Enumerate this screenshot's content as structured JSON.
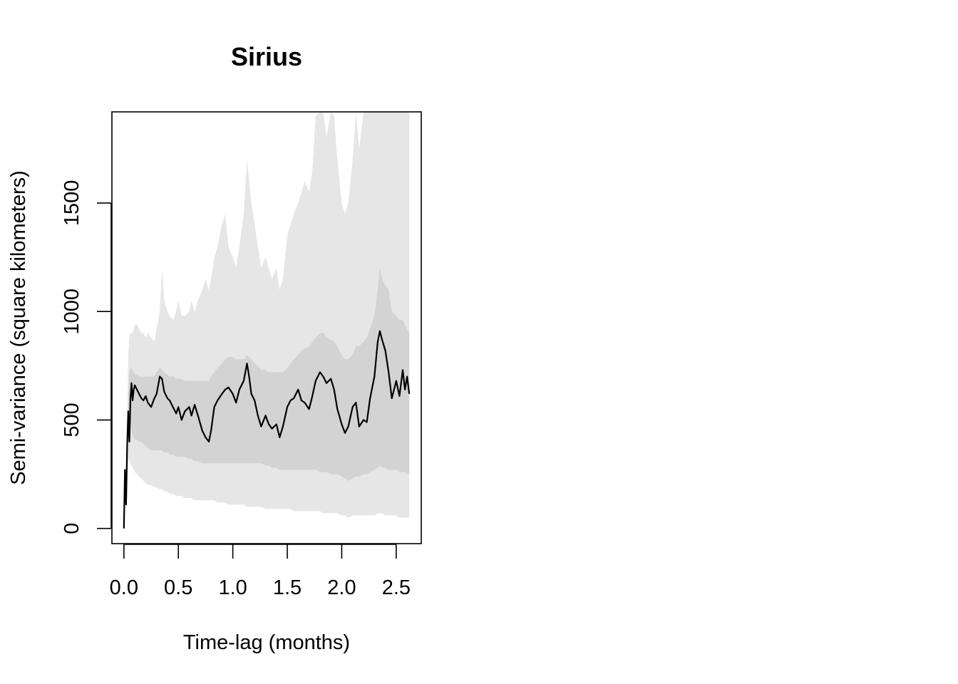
{
  "chart_data": {
    "type": "line",
    "title": "Sirius",
    "xlabel": "Time-lag (months)",
    "ylabel": "Semi-variance (square kilometers)",
    "xlim": [
      -0.11,
      2.73
    ],
    "ylim": [
      -70,
      1920
    ],
    "x_ticks": [
      0.0,
      0.5,
      1.0,
      1.5,
      2.0,
      2.5
    ],
    "x_tick_labels": [
      "0.0",
      "0.5",
      "1.0",
      "1.5",
      "2.0",
      "2.5"
    ],
    "y_ticks": [
      0,
      500,
      1000,
      1500
    ],
    "y_tick_labels": [
      "0",
      "500",
      "1000",
      "1500"
    ],
    "grid": false,
    "colors": {
      "line": "#000000",
      "inner_band": "#d3d3d3",
      "outer_band": "#e6e6e6"
    },
    "series": [
      {
        "x": [
          0.0,
          0.01,
          0.02,
          0.03,
          0.04,
          0.05,
          0.06,
          0.07,
          0.08,
          0.09,
          0.1,
          0.12,
          0.14,
          0.16,
          0.18,
          0.2,
          0.22,
          0.25,
          0.28,
          0.3,
          0.33,
          0.35,
          0.37,
          0.4,
          0.42,
          0.45,
          0.48,
          0.5,
          0.53,
          0.56,
          0.6,
          0.62,
          0.65,
          0.68,
          0.72,
          0.75,
          0.78,
          0.8,
          0.83,
          0.86,
          0.9,
          0.93,
          0.96,
          1.0,
          1.03,
          1.06,
          1.1,
          1.13,
          1.15,
          1.17,
          1.2,
          1.23,
          1.26,
          1.3,
          1.33,
          1.36,
          1.4,
          1.43,
          1.46,
          1.5,
          1.53,
          1.56,
          1.6,
          1.63,
          1.66,
          1.7,
          1.73,
          1.76,
          1.8,
          1.83,
          1.86,
          1.9,
          1.93,
          1.96,
          2.0,
          2.03,
          2.06,
          2.1,
          2.13,
          2.16,
          2.2,
          2.23,
          2.26,
          2.3,
          2.33,
          2.35,
          2.37,
          2.4,
          2.43,
          2.46,
          2.5,
          2.53,
          2.56,
          2.58,
          2.6,
          2.62
        ],
        "values": [
          0,
          270,
          110,
          380,
          540,
          400,
          600,
          670,
          590,
          640,
          660,
          640,
          620,
          600,
          590,
          610,
          580,
          560,
          600,
          620,
          700,
          690,
          630,
          600,
          590,
          560,
          530,
          560,
          500,
          540,
          560,
          520,
          570,
          520,
          450,
          420,
          400,
          450,
          560,
          590,
          620,
          640,
          650,
          620,
          580,
          640,
          680,
          760,
          700,
          620,
          590,
          520,
          470,
          520,
          480,
          460,
          480,
          420,
          470,
          560,
          590,
          600,
          640,
          590,
          580,
          550,
          610,
          680,
          720,
          700,
          670,
          690,
          640,
          550,
          480,
          440,
          470,
          560,
          580,
          470,
          500,
          490,
          600,
          700,
          860,
          910,
          870,
          820,
          720,
          600,
          680,
          610,
          730,
          640,
          700,
          620
        ],
        "inner_low": [
          0,
          250,
          100,
          330,
          460,
          450,
          470,
          450,
          430,
          420,
          410,
          410,
          400,
          400,
          390,
          380,
          370,
          360,
          360,
          360,
          360,
          360,
          350,
          350,
          340,
          340,
          330,
          330,
          330,
          330,
          320,
          320,
          310,
          310,
          300,
          300,
          300,
          300,
          300,
          300,
          300,
          300,
          300,
          300,
          300,
          300,
          300,
          300,
          300,
          300,
          300,
          300,
          300,
          290,
          290,
          280,
          280,
          270,
          270,
          270,
          270,
          270,
          270,
          270,
          270,
          270,
          270,
          270,
          260,
          260,
          260,
          250,
          250,
          250,
          240,
          230,
          220,
          230,
          240,
          240,
          250,
          250,
          260,
          270,
          280,
          290,
          280,
          280,
          270,
          270,
          270,
          260,
          260,
          260,
          250,
          250
        ],
        "inner_high": [
          0,
          280,
          120,
          400,
          620,
          720,
          740,
          740,
          730,
          720,
          710,
          710,
          700,
          700,
          700,
          700,
          700,
          700,
          700,
          720,
          740,
          730,
          720,
          710,
          700,
          700,
          690,
          690,
          690,
          680,
          680,
          680,
          680,
          680,
          680,
          680,
          680,
          700,
          720,
          740,
          760,
          780,
          790,
          790,
          780,
          780,
          780,
          800,
          790,
          780,
          760,
          750,
          730,
          730,
          720,
          720,
          720,
          720,
          720,
          740,
          760,
          780,
          800,
          820,
          830,
          840,
          860,
          880,
          900,
          900,
          880,
          870,
          860,
          840,
          800,
          780,
          780,
          800,
          840,
          840,
          860,
          880,
          920,
          980,
          1100,
          1200,
          1150,
          1120,
          1100,
          1000,
          980,
          960,
          960,
          940,
          920,
          900
        ],
        "outer_low": [
          0,
          200,
          80,
          250,
          320,
          310,
          300,
          290,
          280,
          270,
          260,
          250,
          240,
          230,
          220,
          210,
          200,
          200,
          190,
          190,
          180,
          180,
          170,
          170,
          160,
          160,
          150,
          150,
          150,
          140,
          140,
          140,
          130,
          130,
          130,
          130,
          130,
          130,
          130,
          120,
          120,
          120,
          110,
          110,
          110,
          110,
          110,
          100,
          100,
          100,
          100,
          100,
          100,
          90,
          90,
          90,
          90,
          90,
          90,
          90,
          90,
          80,
          80,
          80,
          80,
          80,
          80,
          80,
          80,
          70,
          70,
          70,
          70,
          70,
          60,
          60,
          50,
          60,
          60,
          60,
          60,
          60,
          60,
          60,
          70,
          70,
          70,
          60,
          60,
          60,
          60,
          50,
          50,
          50,
          50,
          50
        ],
        "outer_high": [
          0,
          300,
          150,
          500,
          800,
          890,
          900,
          900,
          900,
          920,
          940,
          940,
          920,
          900,
          900,
          880,
          900,
          880,
          860,
          920,
          1000,
          1200,
          1050,
          1000,
          980,
          960,
          1000,
          1050,
          980,
          980,
          1000,
          1050,
          1000,
          1050,
          1100,
          1150,
          1100,
          1150,
          1250,
          1300,
          1400,
          1450,
          1300,
          1250,
          1200,
          1300,
          1450,
          1700,
          1600,
          1500,
          1400,
          1300,
          1200,
          1250,
          1200,
          1150,
          1200,
          1100,
          1150,
          1350,
          1400,
          1450,
          1500,
          1550,
          1600,
          1550,
          1650,
          1900,
          1920,
          1920,
          1800,
          1920,
          1900,
          1700,
          1500,
          1450,
          1500,
          1700,
          1920,
          1750,
          1920,
          1920,
          1920,
          1920,
          1920,
          1920,
          1920,
          1920,
          1920,
          1920,
          1920,
          1920,
          1920,
          1920,
          1920,
          1920
        ]
      }
    ]
  }
}
